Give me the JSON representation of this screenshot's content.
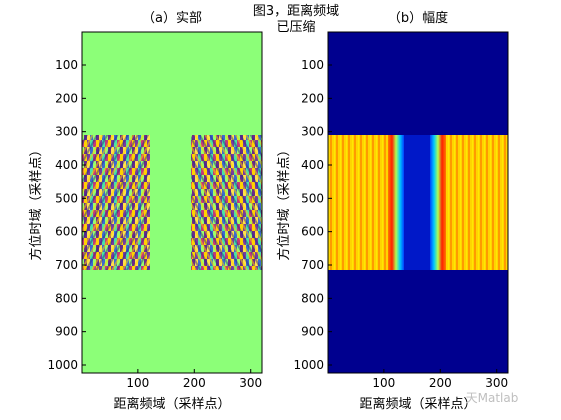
{
  "figure": {
    "suptitle_line1": "图3，距离频域",
    "suptitle_line2": "已压缩",
    "watermark": "天Matlab"
  },
  "chart_data": [
    {
      "type": "heatmap",
      "title": "（a）实部",
      "xlabel": "距离频域（采样点）",
      "ylabel": "方位时域（采样点）",
      "xlim": [
        1,
        320
      ],
      "ylim": [
        1024,
        1
      ],
      "xticks": [
        100,
        200,
        300
      ],
      "yticks": [
        100,
        200,
        300,
        400,
        500,
        600,
        700,
        800,
        900,
        1000
      ],
      "background_color": "#8cff78",
      "signal_rows": [
        310,
        715
      ],
      "signal_columns": [
        [
          1,
          122
        ],
        [
          195,
          320
        ]
      ],
      "pattern": "oscillating fringes (real part)"
    },
    {
      "type": "heatmap",
      "title": "（b）幅度",
      "xlabel": "距离频域（采样点）",
      "ylabel": "方位时域（采样点）",
      "xlim": [
        1,
        320
      ],
      "ylim": [
        1024,
        1
      ],
      "xticks": [
        100,
        200,
        300
      ],
      "yticks": [
        100,
        200,
        300,
        400,
        500,
        600,
        700,
        800,
        900,
        1000
      ],
      "background_color": "#00008f",
      "signal_rows": [
        310,
        715
      ],
      "gap_columns": [
        120,
        198
      ],
      "pattern": "vertical stripes (magnitude)"
    }
  ]
}
